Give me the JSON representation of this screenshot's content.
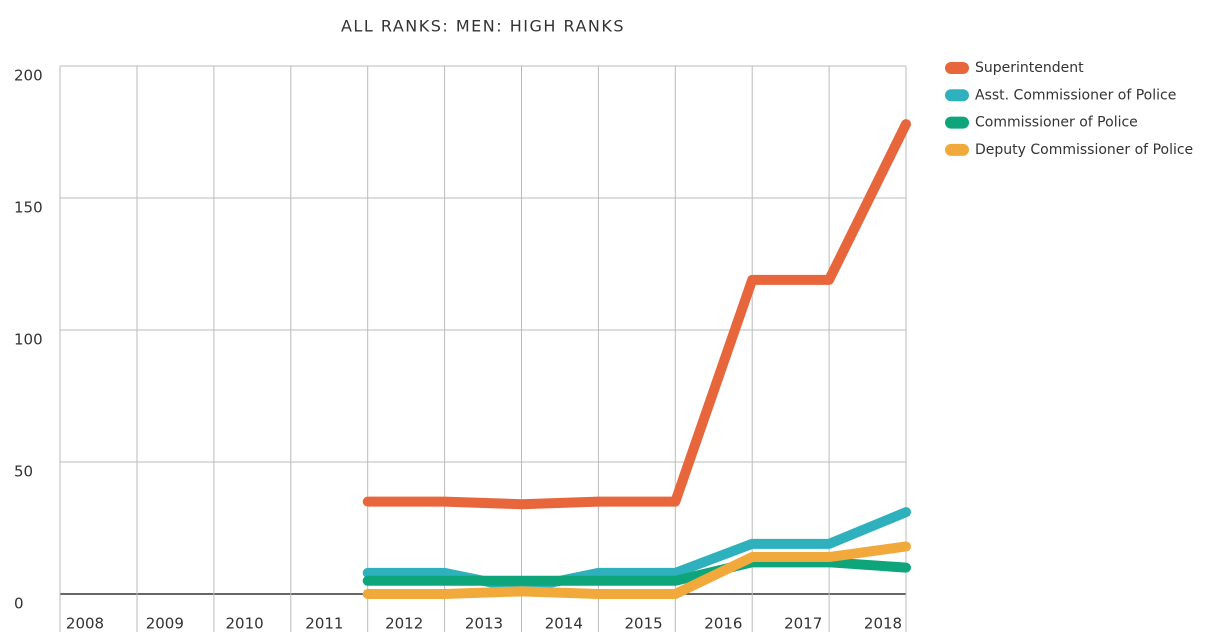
{
  "chart_data": {
    "type": "line",
    "title": "ALL RANKS: MEN: HIGH RANKS",
    "categories": [
      "2008",
      "2009",
      "2010",
      "2011",
      "2012",
      "2013",
      "2014",
      "2015",
      "2016",
      "2017",
      "2018"
    ],
    "series": [
      {
        "name": "Superintendent",
        "color": "#e8663c",
        "values": [
          null,
          null,
          null,
          35,
          35,
          34,
          35,
          35,
          119,
          119,
          178
        ]
      },
      {
        "name": "Asst. Commissioner of Police",
        "color": "#2fb0bd",
        "values": [
          null,
          null,
          null,
          8,
          8,
          2,
          8,
          8,
          19,
          19,
          31
        ]
      },
      {
        "name": "Commissioner of Police",
        "color": "#0ea57a",
        "values": [
          null,
          null,
          null,
          5,
          5,
          5,
          5,
          5,
          12,
          12,
          10
        ]
      },
      {
        "name": "Deputy Commissioner of Police",
        "color": "#f0a93a",
        "values": [
          null,
          null,
          null,
          0,
          0,
          1,
          0,
          0,
          14,
          14,
          18
        ]
      }
    ],
    "ylim": [
      0,
      200
    ],
    "yticks": [
      0,
      50,
      100,
      150,
      200
    ],
    "grid": true
  }
}
